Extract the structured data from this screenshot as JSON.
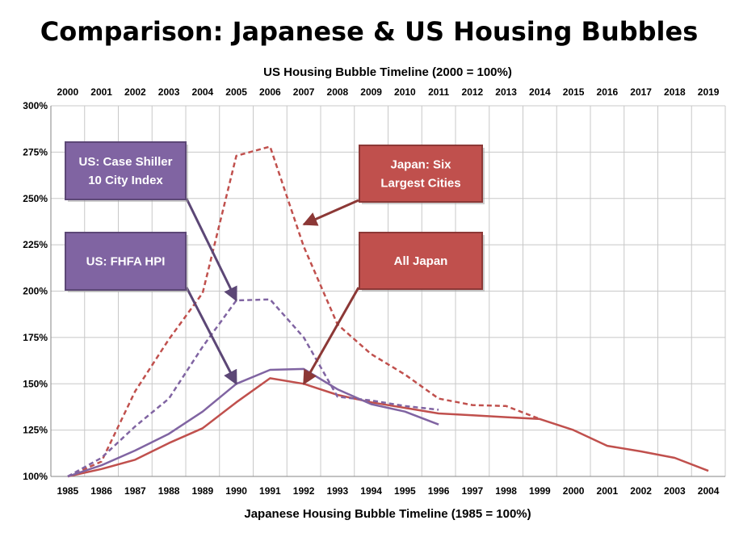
{
  "chart_data": {
    "type": "line",
    "title": "Comparison: Japanese & US Housing Bubbles",
    "top_axis_label": "US Housing Bubble Timeline (2000 = 100%)",
    "xlabel": "Japanese Housing Bubble Timeline (1985 = 100%)",
    "ylabel": "",
    "top_categories": [
      "2000",
      "2001",
      "2002",
      "2003",
      "2004",
      "2005",
      "2006",
      "2007",
      "2008",
      "2009",
      "2010",
      "2011",
      "2012",
      "2013",
      "2014",
      "2015",
      "2016",
      "2017",
      "2018",
      "2019"
    ],
    "categories": [
      "1985",
      "1986",
      "1987",
      "1988",
      "1989",
      "1990",
      "1991",
      "1992",
      "1993",
      "1994",
      "1995",
      "1996",
      "1997",
      "1998",
      "1999",
      "2000",
      "2001",
      "2002",
      "2003",
      "2004"
    ],
    "y_ticks": [
      "100%",
      "125%",
      "150%",
      "175%",
      "200%",
      "225%",
      "250%",
      "275%",
      "300%"
    ],
    "ylim": [
      100,
      300
    ],
    "grid": true,
    "series": [
      {
        "name": "Japan: Six Largest Cities",
        "color": "#c0504d",
        "dash": true,
        "values": [
          100,
          108,
          146,
          174,
          199,
          273,
          278,
          224,
          182,
          166,
          155,
          142,
          138.5,
          138,
          131,
          null,
          null,
          null,
          null,
          null
        ]
      },
      {
        "name": "All Japan",
        "color": "#c0504d",
        "dash": false,
        "values": [
          100,
          104,
          109,
          118,
          126,
          140,
          153,
          150,
          144,
          140,
          137,
          134,
          133,
          132,
          131,
          125,
          116.5,
          113.5,
          110,
          103
        ]
      },
      {
        "name": "US: Case Shiller 10 City Index",
        "color": "#8064a2",
        "dash": true,
        "values": [
          100,
          110,
          127,
          142,
          170,
          195,
          195.5,
          175,
          143,
          141,
          138,
          136,
          null,
          null,
          null,
          null,
          null,
          null,
          null,
          null
        ]
      },
      {
        "name": "US: FHFA HPI",
        "color": "#8064a2",
        "dash": false,
        "values": [
          100,
          106,
          114,
          123,
          135,
          150,
          157.5,
          158,
          147,
          139,
          135,
          128,
          null,
          null,
          null,
          null,
          null,
          null,
          null,
          null
        ]
      }
    ],
    "annotations": [
      {
        "lines": [
          "US: Case Shiller",
          "10 City Index"
        ],
        "series": 2,
        "fill": "#8064a2",
        "border": "#5c4776",
        "arrow_color": "#5c4776",
        "target_x": 5,
        "target_y": 195
      },
      {
        "lines": [
          "US: FHFA HPI"
        ],
        "series": 3,
        "fill": "#8064a2",
        "border": "#5c4776",
        "arrow_color": "#5c4776",
        "target_x": 5,
        "target_y": 150
      },
      {
        "lines": [
          "Japan: Six",
          "Largest Cities"
        ],
        "series": 0,
        "fill": "#c0504d",
        "border": "#8c3836",
        "arrow_color": "#8c3836",
        "target_x": 7,
        "target_y": 236
      },
      {
        "lines": [
          "All Japan"
        ],
        "series": 1,
        "fill": "#c0504d",
        "border": "#8c3836",
        "arrow_color": "#8c3836",
        "target_x": 7,
        "target_y": 150
      }
    ]
  }
}
